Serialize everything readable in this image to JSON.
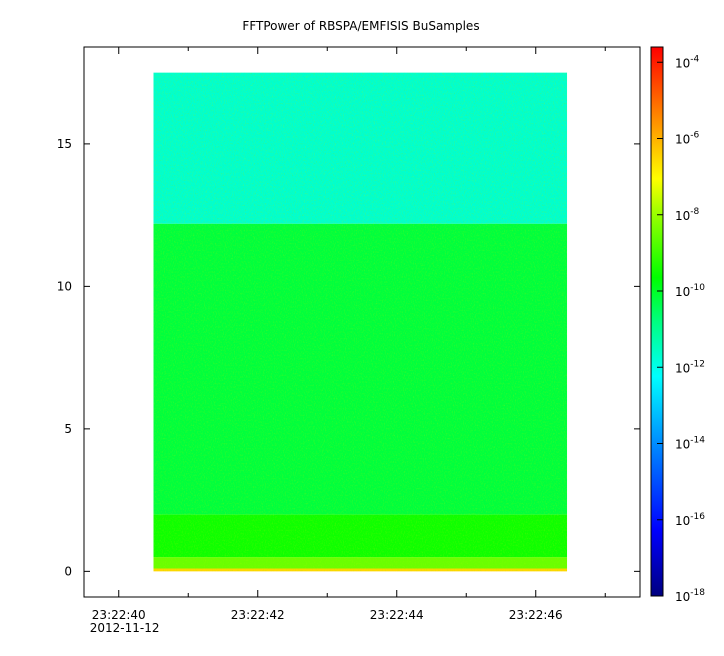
{
  "chart_data": {
    "type": "heatmap",
    "title": "FFTPower of RBSPA/EMFISIS  BuSamples",
    "xlabel": "",
    "ylabel": "",
    "x_axis": {
      "range": [
        "23:22:39.5",
        "23:22:47.5"
      ],
      "ticks": [
        {
          "time": "23:22:40",
          "label": "23:22:40",
          "sublabel": "2012-11-12"
        },
        {
          "time": "23:22:42",
          "label": "23:22:42",
          "sublabel": ""
        },
        {
          "time": "23:22:44",
          "label": "23:22:44",
          "sublabel": ""
        },
        {
          "time": "23:22:46",
          "label": "23:22:46",
          "sublabel": ""
        }
      ],
      "minor_ticks": [
        "23:22:41",
        "23:22:43",
        "23:22:45",
        "23:22:47"
      ]
    },
    "y_axis": {
      "range": [
        -0.9,
        18.4
      ],
      "ticks": [
        {
          "value": 0,
          "label": "0"
        },
        {
          "value": 5,
          "label": "5"
        },
        {
          "value": 10,
          "label": "10"
        },
        {
          "value": 15,
          "label": "15"
        }
      ]
    },
    "data_extent": {
      "x": [
        "23:22:40.5",
        "23:22:46.45"
      ],
      "y": [
        0,
        17.5
      ]
    },
    "bands": [
      {
        "y_from": 0.0,
        "y_to": 0.1,
        "level": -6.5
      },
      {
        "y_from": 0.1,
        "y_to": 0.5,
        "level": -8.5
      },
      {
        "y_from": 0.5,
        "y_to": 2.0,
        "level": -9.5
      },
      {
        "y_from": 2.0,
        "y_to": 12.2,
        "level": -10.2
      },
      {
        "y_from": 12.2,
        "y_to": 17.5,
        "level": -11.7
      }
    ],
    "colorbar": {
      "scale": "log",
      "range": [
        -18,
        -3.6
      ],
      "ticks": [
        {
          "base": "10",
          "exp": "-4",
          "value": -4
        },
        {
          "base": "10",
          "exp": "-6",
          "value": -6
        },
        {
          "base": "10",
          "exp": "-8",
          "value": -8
        },
        {
          "base": "10",
          "exp": "-10",
          "value": -10
        },
        {
          "base": "10",
          "exp": "-12",
          "value": -12
        },
        {
          "base": "10",
          "exp": "-14",
          "value": -14
        },
        {
          "base": "10",
          "exp": "-16",
          "value": -16
        },
        {
          "base": "10",
          "exp": "-18",
          "value": -18
        }
      ],
      "colormap": [
        "#00007f",
        "#0000ff",
        "#00ffff",
        "#00ff00",
        "#ffff00",
        "#ff0000"
      ]
    }
  }
}
